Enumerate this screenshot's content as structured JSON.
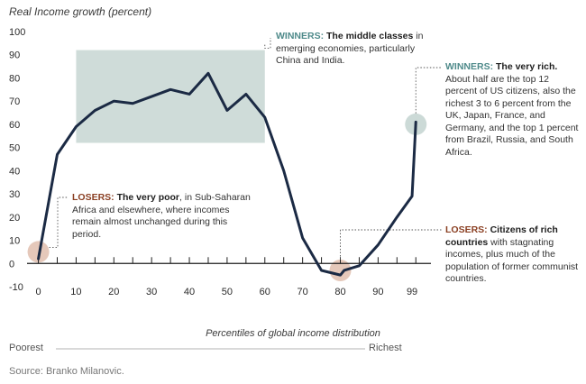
{
  "chart_data": {
    "type": "line",
    "ylabel": "Real Income growth (percent)",
    "xlabel": "Percentiles of global income distribution",
    "xlim": [
      -3,
      104
    ],
    "ylim": [
      -10,
      100
    ],
    "y_ticks": [
      100,
      90,
      80,
      70,
      60,
      50,
      40,
      30,
      20,
      10,
      0,
      -10
    ],
    "x_ticks": [
      0,
      10,
      20,
      30,
      40,
      50,
      60,
      70,
      80,
      90,
      99
    ],
    "x": [
      0,
      5,
      10,
      15,
      20,
      25,
      30,
      35,
      40,
      45,
      50,
      55,
      60,
      65,
      70,
      75,
      80,
      81,
      85,
      90,
      95,
      99,
      100
    ],
    "values": [
      2,
      47,
      59,
      66,
      70,
      69,
      72,
      75,
      73,
      82,
      66,
      73,
      63,
      40,
      11,
      -3,
      -5,
      -3,
      -1,
      8,
      20,
      29,
      61
    ],
    "highlight_region": {
      "x": [
        10,
        60
      ],
      "y": [
        52,
        92
      ]
    },
    "highlight_points": [
      {
        "x": 0,
        "y": 5,
        "kind": "losers"
      },
      {
        "x": 80,
        "y": -3,
        "kind": "losers"
      },
      {
        "x": 100,
        "y": 60,
        "kind": "winners"
      }
    ],
    "grid": false
  },
  "annotations": {
    "winners_middle": {
      "tag": "WINNERS:",
      "bold": " The middle classes",
      "rest": "in emerging economies, particularly China and India."
    },
    "winners_rich": {
      "tag": "WINNERS:",
      "bold": " The very rich.",
      "rest": "About half are the top 12 percent of US citizens, also the richest 3 to 6 percent from the UK, Japan, France, and Germany, and the top 1 percent from Brazil, Russia, and South Africa."
    },
    "losers_poor": {
      "tag": "LOSERS:",
      "bold": " The very poor",
      "rest": ", in Sub-Saharan Africa and elsewhere, where incomes remain almost unchanged during this period."
    },
    "losers_rich": {
      "tag": "LOSERS:",
      "bold": " Citizens of rich countries",
      "rest": " with stagnating incomes, plus much of the population of former communist countries."
    }
  },
  "axis_ends": {
    "left": "Poorest",
    "right": "Richest"
  },
  "source": "Source: Branko Milanovic.",
  "colors": {
    "line": "#1b2a44",
    "highlight_box": "#cfdcd9",
    "winners": "#4e8a8a",
    "losers": "#8a3f22",
    "loser_dot": "#e2c2b3",
    "winner_dot": "#c6d6d3"
  }
}
